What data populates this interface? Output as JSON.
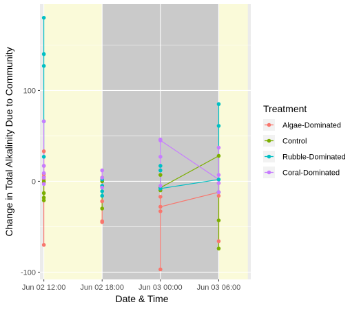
{
  "chart_data": {
    "type": "line",
    "title": "",
    "xlabel": "Date & Time",
    "ylabel": "Change in Total Alkalinity Due to Community",
    "x_ticks": [
      {
        "label": "Jun 02 12:00",
        "hour": 12
      },
      {
        "label": "Jun 02 18:00",
        "hour": 18
      },
      {
        "label": "Jun 03 00:00",
        "hour": 24
      },
      {
        "label": "Jun 03 06:00",
        "hour": 30
      }
    ],
    "xlim_hours": [
      11.6,
      33.3
    ],
    "ylim": [
      -108,
      195
    ],
    "y_ticks": [
      -100,
      0,
      100
    ],
    "grid": true,
    "background_bands": [
      {
        "period": "day",
        "start": 12,
        "end": 18,
        "color": "#FAFAD9"
      },
      {
        "period": "night",
        "start": 18,
        "end": 30,
        "color": "#CACACA"
      },
      {
        "period": "day",
        "start": 30,
        "end": 33,
        "color": "#FAFAD9"
      }
    ],
    "legend": {
      "title": "Treatment",
      "position": "right"
    },
    "series": [
      {
        "name": "Algae-Dominated",
        "color": "#F8766D",
        "points": [
          {
            "hour": 12,
            "values": [
              33,
              17,
              8,
              5,
              2,
              -1,
              -70
            ]
          },
          {
            "hour": 18,
            "values": [
              -5,
              -22,
              -44,
              -45
            ]
          },
          {
            "hour": 24,
            "values": [
              -17,
              -28,
              -33,
              -97
            ]
          },
          {
            "hour": 30,
            "values": [
              -2,
              -12,
              -16,
              -66
            ]
          }
        ]
      },
      {
        "name": "Control",
        "color": "#7CAE00",
        "points": [
          {
            "hour": 12,
            "values": [
              0,
              -13,
              -18,
              -21
            ]
          },
          {
            "hour": 18,
            "values": [
              4,
              0,
              -6,
              -30
            ]
          },
          {
            "hour": 24,
            "values": [
              7,
              -7,
              -10
            ]
          },
          {
            "hour": 30,
            "values": [
              28,
              -43,
              -74
            ]
          }
        ]
      },
      {
        "name": "Rubble-Dominated",
        "color": "#00BFC4",
        "points": [
          {
            "hour": 12,
            "values": [
              180,
              140,
              127,
              66,
              27
            ]
          },
          {
            "hour": 18,
            "values": [
              2,
              -5,
              -11,
              -16
            ]
          },
          {
            "hour": 24,
            "values": [
              17,
              12,
              -8
            ]
          },
          {
            "hour": 30,
            "values": [
              85,
              61,
              2,
              -12
            ]
          }
        ]
      },
      {
        "name": "Coral-Dominated",
        "color": "#C77CFF",
        "points": [
          {
            "hour": 12,
            "values": [
              66,
              17,
              9,
              4,
              -3
            ]
          },
          {
            "hour": 18,
            "values": [
              12,
              4,
              -7
            ]
          },
          {
            "hour": 24,
            "values": [
              46,
              45,
              27,
              -5
            ]
          },
          {
            "hour": 30,
            "values": [
              37,
              7,
              -2,
              -12
            ]
          }
        ]
      }
    ],
    "lines": [
      {
        "series": "Algae-Dominated",
        "path": [
          [
            12,
            33
          ],
          [
            12,
            -70
          ]
        ]
      },
      {
        "series": "Algae-Dominated",
        "path": [
          [
            18,
            -5
          ],
          [
            18,
            -45
          ]
        ]
      },
      {
        "series": "Algae-Dominated",
        "path": [
          [
            24,
            -17
          ],
          [
            24,
            -97
          ]
        ]
      },
      {
        "series": "Algae-Dominated",
        "path": [
          [
            24,
            -28
          ],
          [
            30,
            -12
          ]
        ]
      },
      {
        "series": "Algae-Dominated",
        "path": [
          [
            30,
            -2
          ],
          [
            30,
            -66
          ]
        ]
      },
      {
        "series": "Control",
        "path": [
          [
            12,
            0
          ],
          [
            12,
            -21
          ]
        ]
      },
      {
        "series": "Control",
        "path": [
          [
            18,
            4
          ],
          [
            18,
            -30
          ]
        ]
      },
      {
        "series": "Control",
        "path": [
          [
            24,
            7
          ],
          [
            24,
            -10
          ]
        ]
      },
      {
        "series": "Control",
        "path": [
          [
            24,
            -7
          ],
          [
            30,
            28
          ]
        ]
      },
      {
        "series": "Control",
        "path": [
          [
            30,
            28
          ],
          [
            30,
            -74
          ]
        ]
      },
      {
        "series": "Rubble-Dominated",
        "path": [
          [
            12,
            180
          ],
          [
            12,
            27
          ]
        ]
      },
      {
        "series": "Rubble-Dominated",
        "path": [
          [
            18,
            2
          ],
          [
            18,
            -16
          ]
        ]
      },
      {
        "series": "Rubble-Dominated",
        "path": [
          [
            24,
            17
          ],
          [
            24,
            -8
          ]
        ]
      },
      {
        "series": "Rubble-Dominated",
        "path": [
          [
            24,
            -8
          ],
          [
            30,
            2
          ]
        ]
      },
      {
        "series": "Rubble-Dominated",
        "path": [
          [
            30,
            85
          ],
          [
            30,
            -12
          ]
        ]
      },
      {
        "series": "Coral-Dominated",
        "path": [
          [
            12,
            66
          ],
          [
            12,
            -3
          ]
        ]
      },
      {
        "series": "Coral-Dominated",
        "path": [
          [
            18,
            12
          ],
          [
            18,
            -7
          ]
        ]
      },
      {
        "series": "Coral-Dominated",
        "path": [
          [
            24,
            46
          ],
          [
            24,
            -5
          ]
        ]
      },
      {
        "series": "Coral-Dominated",
        "path": [
          [
            24,
            45
          ],
          [
            30,
            2
          ]
        ]
      },
      {
        "series": "Coral-Dominated",
        "path": [
          [
            30,
            37
          ],
          [
            30,
            -12
          ]
        ]
      }
    ]
  }
}
